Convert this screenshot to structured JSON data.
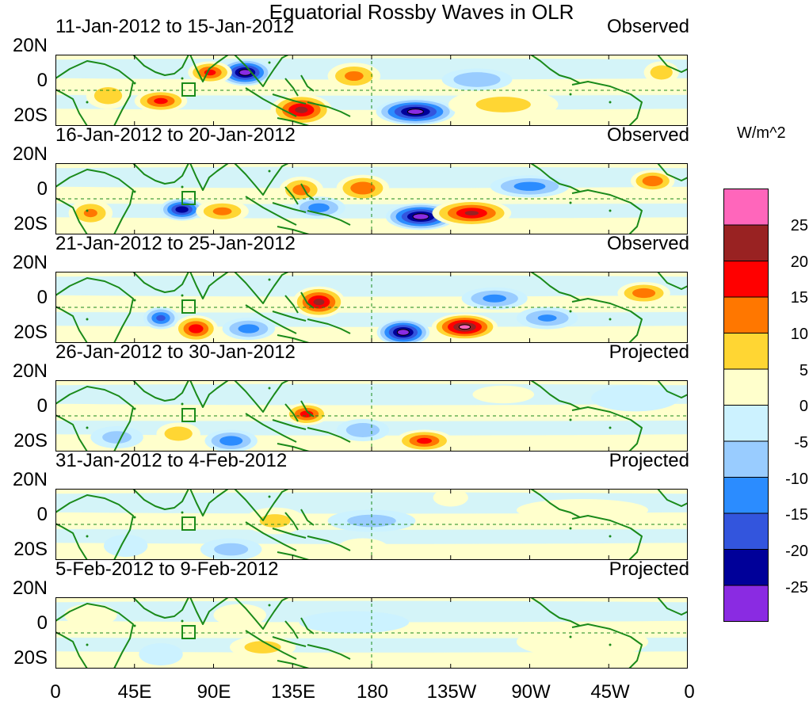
{
  "title": "Equatorial Rossby Waves in OLR",
  "colorbar": {
    "unit": "W/m^2",
    "colors": [
      "#ff66bb",
      "#992222",
      "#ff0000",
      "#ff7700",
      "#ffd633",
      "#ffffcc",
      "#ccf2ff",
      "#99ccff",
      "#2b8cff",
      "#3355dd",
      "#000099",
      "#8a2be2"
    ],
    "labels": [
      "25",
      "20",
      "15",
      "10",
      "5",
      "0",
      "-5",
      "-10",
      "-15",
      "-20",
      "-25"
    ]
  },
  "axes": {
    "y_labels": [
      "20N",
      "0",
      "20S"
    ],
    "x_labels": [
      "0",
      "45E",
      "90E",
      "135E",
      "180",
      "135W",
      "90W",
      "45W",
      "0"
    ]
  },
  "panels": [
    {
      "period": "11-Jan-2012 to 15-Jan-2012",
      "type": "Observed",
      "blobs": [
        {
          "lon": 108,
          "lat": 10,
          "rx": 12,
          "ry": 6,
          "v": -28
        },
        {
          "lon": 88,
          "lat": 10,
          "rx": 10,
          "ry": 5,
          "v": 16
        },
        {
          "lon": 140,
          "lat": -11,
          "rx": 14,
          "ry": 7,
          "v": 21
        },
        {
          "lon": 205,
          "lat": -12,
          "rx": 18,
          "ry": 6,
          "v": -27
        },
        {
          "lon": 170,
          "lat": 8,
          "rx": 12,
          "ry": 6,
          "v": 11
        },
        {
          "lon": 60,
          "lat": -6,
          "rx": 12,
          "ry": 5,
          "v": 16
        },
        {
          "lon": 30,
          "lat": -3,
          "rx": 10,
          "ry": 6,
          "v": 8
        },
        {
          "lon": 240,
          "lat": 6,
          "rx": 16,
          "ry": 5,
          "v": -9
        },
        {
          "lon": 345,
          "lat": 10,
          "rx": 8,
          "ry": 5,
          "v": 8
        },
        {
          "lon": 255,
          "lat": -8,
          "rx": 25,
          "ry": 7,
          "v": 5
        }
      ]
    },
    {
      "period": "16-Jan-2012 to 20-Jan-2012",
      "type": "Observed",
      "blobs": [
        {
          "lon": 72,
          "lat": -6,
          "rx": 10,
          "ry": 5,
          "v": -24
        },
        {
          "lon": 208,
          "lat": -10,
          "rx": 16,
          "ry": 6,
          "v": -28
        },
        {
          "lon": 237,
          "lat": -8,
          "rx": 18,
          "ry": 6,
          "v": 20
        },
        {
          "lon": 175,
          "lat": 6,
          "rx": 12,
          "ry": 6,
          "v": 14
        },
        {
          "lon": 140,
          "lat": 5,
          "rx": 10,
          "ry": 6,
          "v": 12
        },
        {
          "lon": 270,
          "lat": 7,
          "rx": 18,
          "ry": 5,
          "v": -12
        },
        {
          "lon": 340,
          "lat": 10,
          "rx": 10,
          "ry": 5,
          "v": 14
        },
        {
          "lon": 20,
          "lat": -8,
          "rx": 10,
          "ry": 6,
          "v": 10
        },
        {
          "lon": 95,
          "lat": -7,
          "rx": 12,
          "ry": 5,
          "v": 11
        },
        {
          "lon": 150,
          "lat": -5,
          "rx": 12,
          "ry": 5,
          "v": -12
        }
      ]
    },
    {
      "period": "21-Jan-2012 to 25-Jan-2012",
      "type": "Observed",
      "blobs": [
        {
          "lon": 198,
          "lat": -14,
          "rx": 12,
          "ry": 6,
          "v": -28
        },
        {
          "lon": 233,
          "lat": -11,
          "rx": 15,
          "ry": 6,
          "v": 26
        },
        {
          "lon": 150,
          "lat": 3,
          "rx": 12,
          "ry": 7,
          "v": 21
        },
        {
          "lon": 80,
          "lat": -12,
          "rx": 10,
          "ry": 6,
          "v": 18
        },
        {
          "lon": 60,
          "lat": -6,
          "rx": 8,
          "ry": 5,
          "v": -16
        },
        {
          "lon": 110,
          "lat": -12,
          "rx": 12,
          "ry": 5,
          "v": -12
        },
        {
          "lon": 250,
          "lat": 5,
          "rx": 15,
          "ry": 5,
          "v": -11
        },
        {
          "lon": 335,
          "lat": 8,
          "rx": 12,
          "ry": 5,
          "v": 13
        },
        {
          "lon": 280,
          "lat": -6,
          "rx": 14,
          "ry": 5,
          "v": -10
        }
      ]
    },
    {
      "period": "26-Jan-2012 to 30-Jan-2012",
      "type": "Projected",
      "blobs": [
        {
          "lon": 143,
          "lat": 1,
          "rx": 10,
          "ry": 5,
          "v": 17
        },
        {
          "lon": 210,
          "lat": -14,
          "rx": 13,
          "ry": 5,
          "v": 16
        },
        {
          "lon": 100,
          "lat": -14,
          "rx": 12,
          "ry": 5,
          "v": -13
        },
        {
          "lon": 70,
          "lat": -10,
          "rx": 10,
          "ry": 5,
          "v": 8
        },
        {
          "lon": 175,
          "lat": -8,
          "rx": 12,
          "ry": 5,
          "v": -8
        },
        {
          "lon": 35,
          "lat": -12,
          "rx": 12,
          "ry": 5,
          "v": -6
        },
        {
          "lon": 330,
          "lat": 10,
          "rx": 20,
          "ry": 6,
          "v": -4
        },
        {
          "lon": 255,
          "lat": 12,
          "rx": 14,
          "ry": 4,
          "v": 3
        }
      ]
    },
    {
      "period": "31-Jan-2012 to 4-Feb-2012",
      "type": "Projected",
      "blobs": [
        {
          "lon": 125,
          "lat": 2,
          "rx": 14,
          "ry": 6,
          "v": 5
        },
        {
          "lon": 100,
          "lat": -14,
          "rx": 14,
          "ry": 5,
          "v": -6
        },
        {
          "lon": 180,
          "lat": 2,
          "rx": 20,
          "ry": 5,
          "v": -6
        },
        {
          "lon": 175,
          "lat": -14,
          "rx": 12,
          "ry": 5,
          "v": 4
        },
        {
          "lon": 225,
          "lat": 15,
          "rx": 8,
          "ry": 4,
          "v": 4
        },
        {
          "lon": 40,
          "lat": -12,
          "rx": 10,
          "ry": 5,
          "v": -4
        },
        {
          "lon": 300,
          "lat": 8,
          "rx": 30,
          "ry": 5,
          "v": 2
        }
      ]
    },
    {
      "period": "5-Feb-2012 to 9-Feb-2012",
      "type": "Projected",
      "blobs": [
        {
          "lon": 118,
          "lat": -8,
          "rx": 15,
          "ry": 5,
          "v": 6
        },
        {
          "lon": 105,
          "lat": 10,
          "rx": 12,
          "ry": 5,
          "v": 3
        },
        {
          "lon": 170,
          "lat": 6,
          "rx": 25,
          "ry": 5,
          "v": -4
        },
        {
          "lon": 60,
          "lat": -12,
          "rx": 10,
          "ry": 5,
          "v": -4
        },
        {
          "lon": 300,
          "lat": -5,
          "rx": 30,
          "ry": 7,
          "v": 2
        },
        {
          "lon": 20,
          "lat": 10,
          "rx": 12,
          "ry": 5,
          "v": 2
        }
      ]
    }
  ]
}
